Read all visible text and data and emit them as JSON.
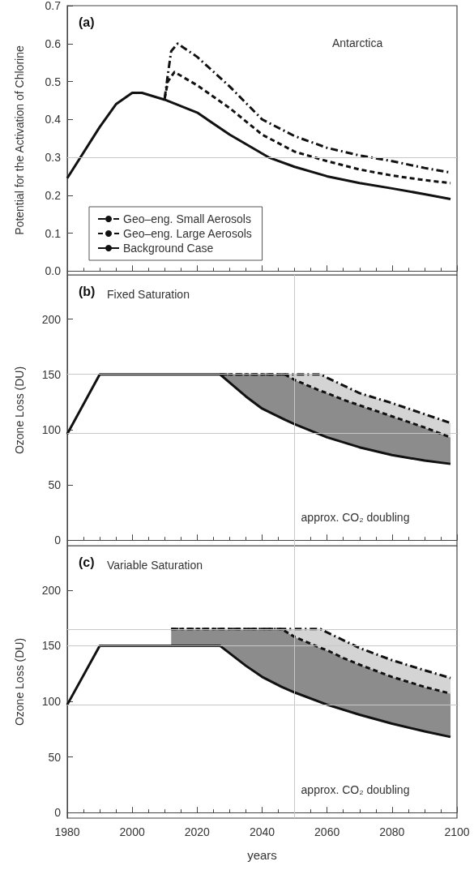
{
  "chart_data": [
    {
      "type": "line",
      "title": "Antarctica",
      "annotations": [
        "(a)"
      ],
      "ylabel": "Potential for the Activation of Chlorine",
      "xlim": [
        1980,
        2100
      ],
      "xticks": [
        1980,
        2000,
        2020,
        2040,
        2060,
        2080,
        2100
      ],
      "ylim": [
        -0.01,
        0.7
      ],
      "yticks": [
        {
          "value": 0,
          "label": "0.0"
        },
        0.1,
        0.2,
        0.3,
        0.4,
        0.5,
        0.6,
        0.7
      ],
      "tick_labels": "y",
      "legend": "bottom left",
      "ref_lines": [
        {
          "axis": "y",
          "value": 0.3,
          "color": "#c8c8c8"
        }
      ],
      "series": [
        {
          "name": "Geo–eng. Small Aerosols",
          "color": "#111111",
          "line_style": "dashdot",
          "x": [
            2010,
            2011,
            2012,
            2014,
            2020,
            2030,
            2040,
            2050,
            2060,
            2070,
            2080,
            2090,
            2098
          ],
          "values": [
            0.455,
            0.52,
            0.58,
            0.6,
            0.565,
            0.487,
            0.4,
            0.356,
            0.325,
            0.305,
            0.29,
            0.272,
            0.26
          ]
        },
        {
          "name": "Geo–eng. Large Aerosols",
          "color": "#111111",
          "line_style": "dashed",
          "x": [
            2010,
            2011,
            2013,
            2020,
            2030,
            2040,
            2050,
            2060,
            2070,
            2080,
            2090,
            2098
          ],
          "values": [
            0.455,
            0.5,
            0.525,
            0.49,
            0.43,
            0.36,
            0.315,
            0.29,
            0.268,
            0.252,
            0.24,
            0.232
          ]
        },
        {
          "name": "Background Case",
          "color": "#111111",
          "line_style": "solid",
          "x": [
            1980,
            1990,
            1995,
            2000,
            2003,
            2010,
            2020,
            2030,
            2042,
            2050,
            2060,
            2070,
            2080,
            2090,
            2098
          ],
          "values": [
            0.245,
            0.38,
            0.44,
            0.47,
            0.47,
            0.452,
            0.418,
            0.36,
            0.3,
            0.275,
            0.25,
            0.232,
            0.218,
            0.203,
            0.19
          ]
        }
      ]
    },
    {
      "type": "line",
      "title": "Fixed Saturation",
      "annotations": [
        "(b)"
      ],
      "ylabel": "Ozone Loss (DU)",
      "xlim": [
        1980,
        2100
      ],
      "xticks": [
        1980,
        2000,
        2020,
        2040,
        2060,
        2080,
        2100
      ],
      "ylim": [
        -5,
        240
      ],
      "yticks": [
        0,
        50,
        100,
        150,
        200
      ],
      "tick_labels": "y",
      "ref_lines": [
        {
          "axis": "y",
          "value": 150,
          "color": "#c8c8c8"
        },
        {
          "axis": "y",
          "value": 97,
          "color": "#c8c8c8"
        },
        {
          "axis": "x",
          "value": 2050,
          "label": "approx. CO₂ doubling",
          "color": "#c8c8c8"
        }
      ],
      "series": [
        {
          "color": "#111111",
          "line_style": "solid",
          "x": [
            1980,
            1990,
            2027,
            2035,
            2040,
            2047,
            2050,
            2060,
            2070,
            2080,
            2090,
            2098
          ],
          "values": [
            96,
            150,
            150,
            130,
            119,
            109,
            105,
            93,
            84,
            77,
            72,
            69
          ]
        },
        {
          "color": "#111111",
          "line_style": "dashed",
          "x": [
            2027,
            2035,
            2040,
            2047,
            2050,
            2058,
            2060,
            2065,
            2070,
            2080,
            2090,
            2098
          ],
          "values": [
            150,
            150,
            150,
            150,
            145,
            135,
            133,
            127,
            122,
            112,
            102,
            93
          ],
          "lower": [
            150,
            130,
            119,
            109,
            105,
            96,
            93,
            89,
            84,
            77,
            72,
            69
          ],
          "upper": [
            150,
            150,
            150,
            150,
            145,
            135,
            133,
            127,
            122,
            112,
            102,
            93
          ]
        },
        {
          "color": "#111111",
          "line_style": "dashdot",
          "x": [
            2027,
            2047,
            2050,
            2058,
            2060,
            2065,
            2070,
            2080,
            2090,
            2098
          ],
          "values": [
            150,
            150,
            150,
            150,
            147,
            140,
            133,
            124,
            114,
            106
          ],
          "lower": [
            150,
            150,
            145,
            135,
            133,
            127,
            122,
            112,
            102,
            93
          ],
          "upper": [
            150,
            150,
            150,
            150,
            147,
            140,
            133,
            124,
            114,
            106
          ]
        }
      ]
    },
    {
      "type": "line",
      "title": "Variable Saturation",
      "annotations": [
        "(c)"
      ],
      "ylabel": "Ozone Loss (DU)",
      "xlabel": "years",
      "xlim": [
        1980,
        2100
      ],
      "xticks": [
        1980,
        2000,
        2020,
        2040,
        2060,
        2080,
        2100
      ],
      "ylim": [
        -5,
        240
      ],
      "yticks": [
        0,
        50,
        100,
        150,
        200
      ],
      "ref_lines": [
        {
          "axis": "y",
          "value": 165,
          "color": "#c8c8c8"
        },
        {
          "axis": "y",
          "value": 150,
          "color": "#c8c8c8"
        },
        {
          "axis": "y",
          "value": 97,
          "color": "#c8c8c8"
        },
        {
          "axis": "x",
          "value": 2050,
          "label": "approx. CO₂ doubling",
          "color": "#c8c8c8"
        }
      ],
      "series": [
        {
          "color": "#111111",
          "line_style": "solid",
          "x": [
            1980,
            1990,
            2027,
            2035,
            2040,
            2046,
            2050,
            2060,
            2070,
            2080,
            2090,
            2098
          ],
          "values": [
            97,
            150,
            150,
            132,
            122,
            113,
            108,
            97,
            88,
            80,
            73,
            68
          ]
        },
        {
          "color": "#111111",
          "line_style": "dashed",
          "x": [
            2012,
            2027,
            2035,
            2040,
            2046,
            2050,
            2058,
            2060,
            2065,
            2070,
            2080,
            2090,
            2098
          ],
          "values": [
            165,
            165,
            165,
            165,
            165,
            158,
            148,
            146,
            139,
            133,
            122,
            113,
            107
          ],
          "lower": [
            150,
            150,
            132,
            122,
            113,
            108,
            99,
            97,
            93,
            88,
            80,
            73,
            68
          ],
          "upper": [
            165,
            165,
            165,
            165,
            165,
            158,
            148,
            146,
            139,
            133,
            122,
            113,
            107
          ]
        },
        {
          "color": "#111111",
          "line_style": "dashdot",
          "x": [
            2012,
            2046,
            2050,
            2058,
            2060,
            2065,
            2070,
            2080,
            2090,
            2098
          ],
          "values": [
            165,
            165,
            165,
            165,
            162,
            155,
            148,
            137,
            128,
            121
          ],
          "lower": [
            165,
            165,
            158,
            148,
            146,
            139,
            133,
            122,
            113,
            107
          ],
          "upper": [
            165,
            165,
            165,
            165,
            162,
            155,
            148,
            137,
            128,
            121
          ]
        }
      ]
    }
  ]
}
